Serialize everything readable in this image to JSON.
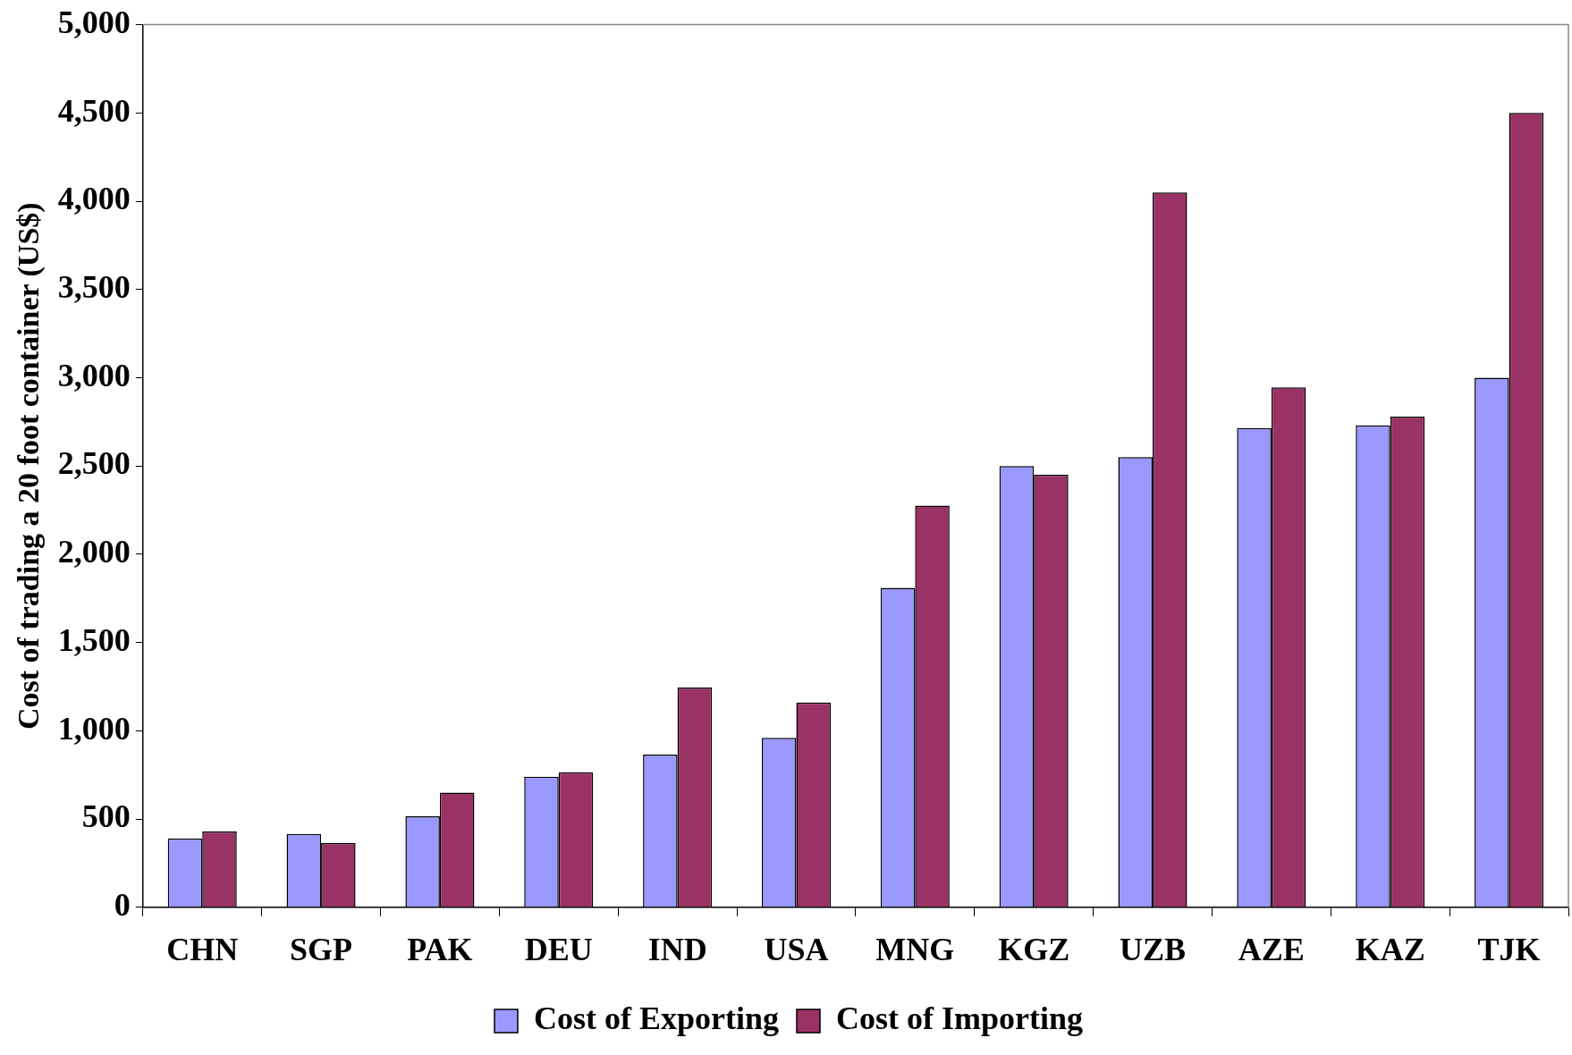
{
  "chart_data": {
    "type": "bar",
    "ylabel": "Cost of trading a 20 foot container (US$)",
    "categories": [
      "CHN",
      "SGP",
      "PAK",
      "DEU",
      "IND",
      "USA",
      "MNG",
      "KGZ",
      "UZB",
      "AZE",
      "KAZ",
      "TJK"
    ],
    "series": [
      {
        "name": "Cost of Exporting",
        "color": "#9999ff",
        "values": [
          390,
          415,
          515,
          740,
          865,
          960,
          1810,
          2500,
          2550,
          2715,
          2730,
          3000
        ]
      },
      {
        "name": "Cost of Importing",
        "color": "#993366",
        "values": [
          430,
          365,
          650,
          765,
          1245,
          1160,
          2275,
          2450,
          4050,
          2945,
          2780,
          4500
        ]
      }
    ],
    "ylim": [
      0,
      5000
    ],
    "yticks": [
      {
        "value": 0,
        "label": "0"
      },
      {
        "value": 500,
        "label": "500"
      },
      {
        "value": 1000,
        "label": "1,000"
      },
      {
        "value": 1500,
        "label": "1,500"
      },
      {
        "value": 2000,
        "label": "2,000"
      },
      {
        "value": 2500,
        "label": "2,500"
      },
      {
        "value": 3000,
        "label": "3,000"
      },
      {
        "value": 3500,
        "label": "3,500"
      },
      {
        "value": 4000,
        "label": "4,000"
      },
      {
        "value": 4500,
        "label": "4,500"
      },
      {
        "value": 5000,
        "label": "5,000"
      }
    ],
    "grid": false,
    "legend": "bottom"
  }
}
